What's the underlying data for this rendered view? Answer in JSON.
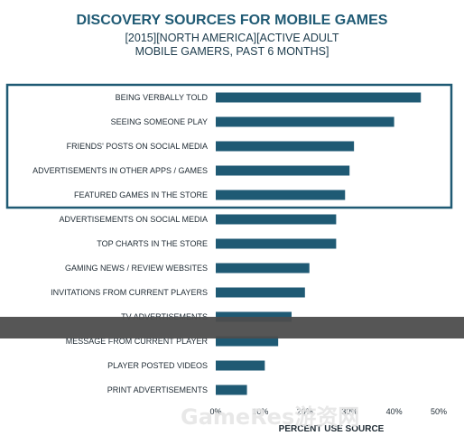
{
  "chart_data": {
    "type": "bar",
    "orientation": "horizontal",
    "title": "DISCOVERY SOURCES FOR MOBILE GAMES",
    "subtitle_lines": [
      "[2015][NORTH AMERICA][ACTIVE ADULT",
      "MOBILE GAMERS, PAST 6 MONTHS]"
    ],
    "xlabel": "PERCENT USE SOURCE",
    "ylabel": "",
    "xlim": [
      0,
      50
    ],
    "x_ticks": [
      "0%",
      "10%",
      "20%",
      "30%",
      "40%",
      "50%"
    ],
    "categories": [
      "BEING VERBALLY TOLD",
      "SEEING SOMEONE PLAY",
      "FRIENDS' POSTS ON SOCIAL MEDIA",
      "ADVERTISEMENTS IN OTHER APPS / GAMES",
      "FEATURED GAMES IN THE STORE",
      "ADVERTISEMENTS ON SOCIAL MEDIA",
      "TOP CHARTS IN THE STORE",
      "GAMING NEWS / REVIEW WEBSITES",
      "INVITATIONS FROM CURRENT PLAYERS",
      "TV ADVERTISEMENTS",
      "MESSAGE FROM CURRENT PLAYER",
      "PLAYER POSTED VIDEOS",
      "PRINT ADVERTISEMENTS"
    ],
    "values": [
      46,
      40,
      31,
      30,
      29,
      27,
      27,
      21,
      20,
      17,
      14,
      11,
      7
    ],
    "highlighted_count": 5,
    "grid": false,
    "colors": {
      "bar": "#1f5a74",
      "title": "#1f5a74",
      "highlight_box": "#1f5a74",
      "banner": "#4d4d4d"
    }
  },
  "watermark": "GameRes游资网"
}
